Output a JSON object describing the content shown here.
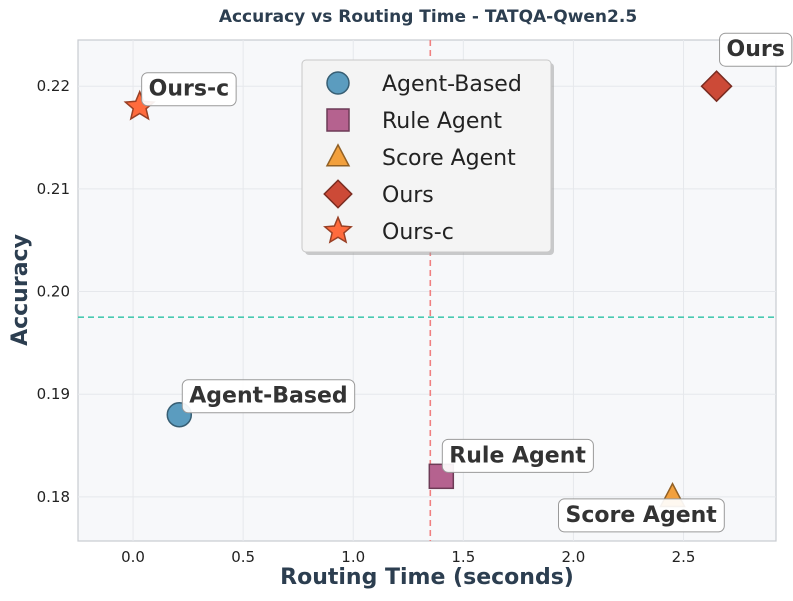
{
  "chart_data": {
    "type": "scatter",
    "title": "Accuracy vs Routing Time - TATQA-Qwen2.5",
    "xlabel": "Routing Time (seconds)",
    "ylabel": "Accuracy",
    "xlim": [
      -0.25,
      2.92
    ],
    "ylim": [
      0.1757,
      0.2245
    ],
    "xticks": [
      0.0,
      0.5,
      1.0,
      1.5,
      2.0,
      2.5
    ],
    "xtick_labels": [
      "0.0",
      "0.5",
      "1.0",
      "1.5",
      "2.0",
      "2.5"
    ],
    "yticks": [
      0.18,
      0.19,
      0.2,
      0.21,
      0.22
    ],
    "ytick_labels": [
      "0.18",
      "0.19",
      "0.20",
      "0.21",
      "0.22"
    ],
    "grid": true,
    "legend_position": "upper-center",
    "reference_lines": {
      "vertical_x": 1.35,
      "vertical_color": "#f08080",
      "horizontal_y": 0.1975,
      "horizontal_color": "#48c9b0"
    },
    "series": [
      {
        "name": "Agent-Based",
        "marker": "circle",
        "color": "#5b9cbf",
        "x": 0.21,
        "y": 0.188,
        "annotation": "Agent-Based"
      },
      {
        "name": "Rule Agent",
        "marker": "square",
        "color": "#b5628f",
        "x": 1.4,
        "y": 0.182,
        "annotation": "Rule Agent"
      },
      {
        "name": "Score Agent",
        "marker": "triangle",
        "color": "#f2a03d",
        "x": 2.45,
        "y": 0.18,
        "annotation": "Score Agent"
      },
      {
        "name": "Ours",
        "marker": "diamond",
        "color": "#cc4a37",
        "x": 2.65,
        "y": 0.22,
        "annotation": "Ours"
      },
      {
        "name": "Ours-c",
        "marker": "star",
        "color": "#ff6b3d",
        "x": 0.03,
        "y": 0.218,
        "annotation": "Ours-c"
      }
    ]
  }
}
